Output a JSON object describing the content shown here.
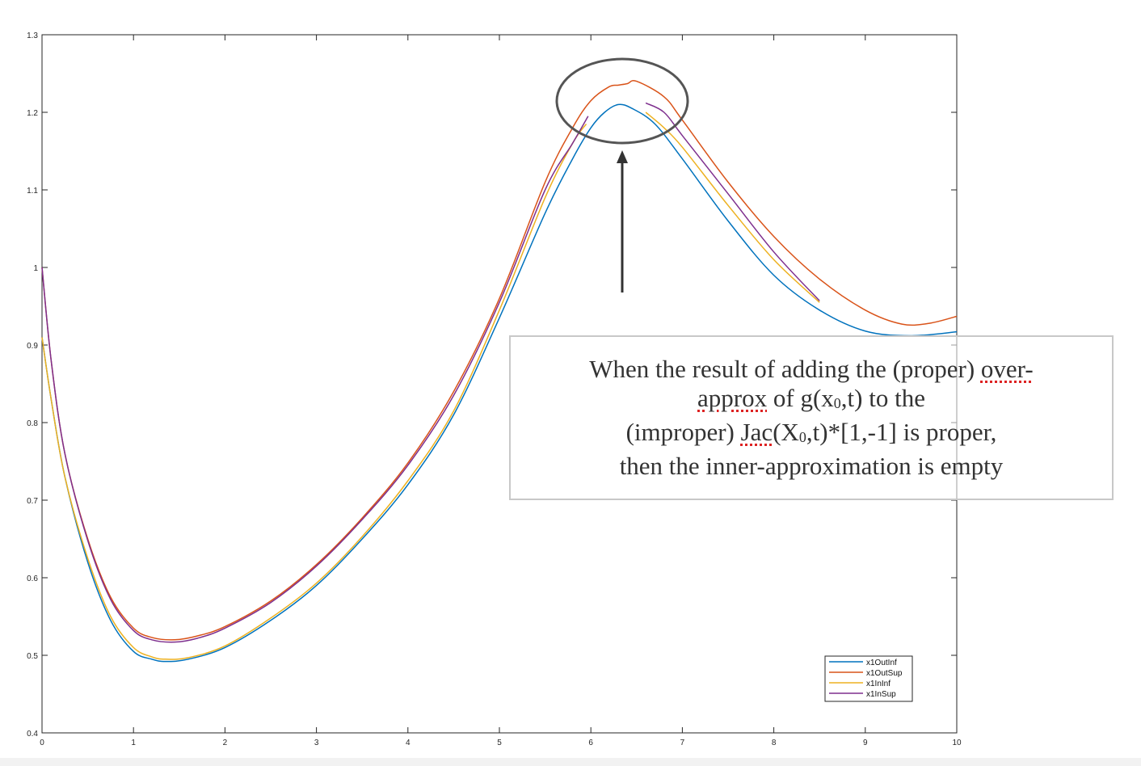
{
  "chart_data": {
    "type": "line",
    "title": "",
    "xlabel": "",
    "ylabel": "",
    "xlim": [
      0,
      10
    ],
    "ylim": [
      0.4,
      1.3
    ],
    "xticks": [
      "0",
      "1",
      "2",
      "3",
      "4",
      "5",
      "6",
      "7",
      "8",
      "9",
      "10"
    ],
    "yticks": [
      "0.4",
      "0.5",
      "0.6",
      "0.7",
      "0.8",
      "0.9",
      "1",
      "1.1",
      "1.2",
      "1.3"
    ],
    "grid": false,
    "legend_position": "bottom-right",
    "series": [
      {
        "name": "x1OutInf",
        "color": "#0072BD",
        "x": [
          0,
          0.1,
          0.25,
          0.5,
          0.75,
          1.0,
          1.2,
          1.35,
          1.6,
          2.0,
          2.5,
          3.0,
          3.5,
          4.0,
          4.5,
          5.0,
          5.5,
          5.8,
          6.0,
          6.15,
          6.3,
          6.45,
          6.7,
          7.0,
          7.5,
          8.0,
          8.5,
          9.0,
          9.5,
          10.0
        ],
        "y": [
          0.91,
          0.83,
          0.73,
          0.62,
          0.545,
          0.505,
          0.495,
          0.492,
          0.495,
          0.51,
          0.545,
          0.59,
          0.65,
          0.72,
          0.81,
          0.935,
          1.07,
          1.14,
          1.18,
          1.2,
          1.21,
          1.205,
          1.185,
          1.14,
          1.06,
          0.99,
          0.945,
          0.918,
          0.912,
          0.917
        ]
      },
      {
        "name": "x1OutSup",
        "color": "#D95319",
        "x": [
          0,
          0.1,
          0.25,
          0.5,
          0.75,
          1.0,
          1.2,
          1.45,
          1.7,
          2.0,
          2.5,
          3.0,
          3.5,
          4.0,
          4.5,
          5.0,
          5.5,
          5.8,
          6.0,
          6.2,
          6.3,
          6.4,
          6.5,
          6.8,
          7.0,
          7.5,
          8.0,
          8.5,
          9.0,
          9.4,
          9.7,
          10.0
        ],
        "y": [
          1.0,
          0.88,
          0.76,
          0.65,
          0.575,
          0.535,
          0.523,
          0.52,
          0.525,
          0.537,
          0.57,
          0.617,
          0.677,
          0.748,
          0.84,
          0.96,
          1.11,
          1.18,
          1.215,
          1.233,
          1.235,
          1.237,
          1.24,
          1.22,
          1.19,
          1.11,
          1.04,
          0.985,
          0.945,
          0.927,
          0.928,
          0.937
        ]
      },
      {
        "name": "x1InInf",
        "color": "#EDB120",
        "x": [
          0,
          0.1,
          0.25,
          0.5,
          0.75,
          1.0,
          1.2,
          1.35,
          1.6,
          2.0,
          2.5,
          3.0,
          3.5,
          4.0,
          4.5,
          5.0,
          5.5,
          5.8,
          5.95,
          6.6,
          6.8,
          7.0,
          7.5,
          8.0,
          8.5
        ],
        "y": [
          0.91,
          0.83,
          0.73,
          0.625,
          0.55,
          0.51,
          0.498,
          0.495,
          0.497,
          0.512,
          0.548,
          0.593,
          0.653,
          0.725,
          0.815,
          0.945,
          1.09,
          1.16,
          1.185,
          1.2,
          1.18,
          1.155,
          1.08,
          1.01,
          0.955
        ]
      },
      {
        "name": "x1InSup",
        "color": "#7E2F8E",
        "x": [
          0,
          0.1,
          0.25,
          0.5,
          0.75,
          1.0,
          1.2,
          1.45,
          1.7,
          2.0,
          2.5,
          3.0,
          3.5,
          4.0,
          4.5,
          5.0,
          5.5,
          5.8,
          5.97,
          6.6,
          6.8,
          7.0,
          7.5,
          8.0,
          8.5
        ],
        "y": [
          1.0,
          0.88,
          0.76,
          0.648,
          0.572,
          0.532,
          0.52,
          0.517,
          0.522,
          0.535,
          0.568,
          0.615,
          0.675,
          0.745,
          0.835,
          0.955,
          1.1,
          1.16,
          1.195,
          1.212,
          1.2,
          1.17,
          1.095,
          1.02,
          0.957
        ]
      }
    ],
    "annotation": {
      "line1_a": "When the result of adding the (proper) ",
      "line1_b": "over-",
      "line2_a": "approx",
      "line2_b": " of g(x",
      "line2_sub": "0",
      "line2_c": ",t)  to the",
      "line3_a": "(improper) ",
      "line3_b": "Jac",
      "line3_c": "(X",
      "line3_sub": "0",
      "line3_d": ",t)*[1,-1] is proper,",
      "line4": "then the inner-approximation is empty"
    }
  }
}
